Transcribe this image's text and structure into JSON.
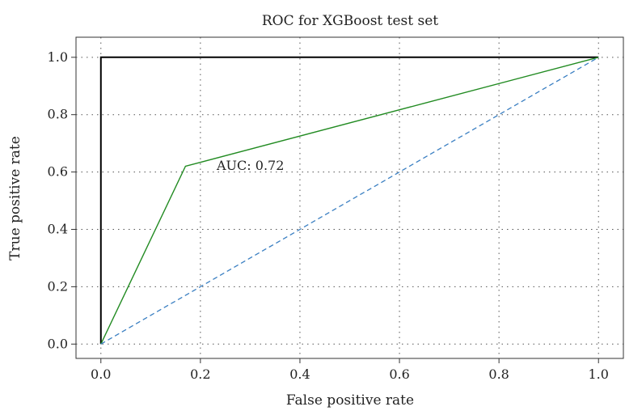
{
  "chart_data": {
    "type": "line",
    "title": "ROC for XGBoost test set",
    "xlabel": "False positive rate",
    "ylabel": "True positive rate",
    "xlim": [
      -0.05,
      1.05
    ],
    "ylim": [
      -0.05,
      1.07
    ],
    "xticks": [
      "0.0",
      "0.2",
      "0.4",
      "0.6",
      "0.8",
      "1.0"
    ],
    "yticks": [
      "0.0",
      "0.2",
      "0.4",
      "0.6",
      "0.8",
      "1.0"
    ],
    "grid": true,
    "annotation": "AUC: 0.72",
    "series": [
      {
        "color": "#000000",
        "style": "solid",
        "x": [
          0.0,
          0.0,
          1.0
        ],
        "y": [
          0.0,
          1.0,
          1.0
        ]
      },
      {
        "color": "#228b22",
        "style": "solid",
        "x": [
          0.0,
          0.17,
          1.0
        ],
        "y": [
          0.0,
          0.62,
          1.0
        ]
      },
      {
        "color": "#3a7fc2",
        "style": "dashed",
        "x": [
          0.0,
          1.0
        ],
        "y": [
          0.0,
          1.0
        ]
      }
    ]
  }
}
